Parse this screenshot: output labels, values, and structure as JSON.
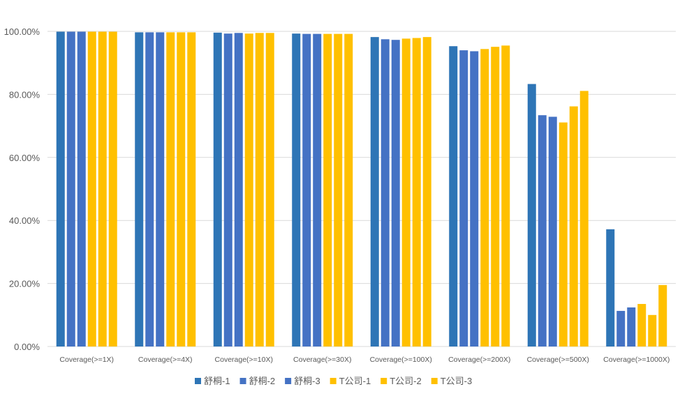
{
  "chart_data": {
    "type": "bar",
    "title": "",
    "xlabel": "",
    "ylabel": "",
    "ylim": [
      0,
      100
    ],
    "yticks": [
      "0.00%",
      "20.00%",
      "40.00%",
      "60.00%",
      "80.00%",
      "100.00%"
    ],
    "grid": true,
    "legend_position": "bottom",
    "categories": [
      "Coverage(>=1X)",
      "Coverage(>=4X)",
      "Coverage(>=10X)",
      "Coverage(>=30X)",
      "Coverage(>=100X)",
      "Coverage(>=200X)",
      "Coverage(>=500X)",
      "Coverage(>=1000X)"
    ],
    "series": [
      {
        "name": "舒桐-1",
        "color": "#2E75B6",
        "values": [
          99.9,
          99.7,
          99.6,
          99.3,
          98.2,
          95.3,
          83.3,
          37.2
        ]
      },
      {
        "name": "舒桐-2",
        "color": "#4472C4",
        "values": [
          99.9,
          99.7,
          99.3,
          99.2,
          97.5,
          94.0,
          73.4,
          11.3
        ]
      },
      {
        "name": "舒桐-3",
        "color": "#4472C4",
        "values": [
          99.9,
          99.7,
          99.5,
          99.2,
          97.3,
          93.7,
          72.9,
          12.4
        ]
      },
      {
        "name": "T公司-1",
        "color": "#FFC000",
        "values": [
          99.9,
          99.7,
          99.3,
          99.2,
          97.7,
          94.4,
          71.1,
          13.5
        ]
      },
      {
        "name": "T公司-2",
        "color": "#FFC000",
        "values": [
          99.9,
          99.7,
          99.5,
          99.2,
          97.9,
          95.1,
          76.2,
          10.0
        ]
      },
      {
        "name": "T公司-3",
        "color": "#FFC000",
        "values": [
          99.9,
          99.7,
          99.5,
          99.2,
          98.2,
          95.5,
          81.1,
          19.5
        ]
      }
    ]
  }
}
